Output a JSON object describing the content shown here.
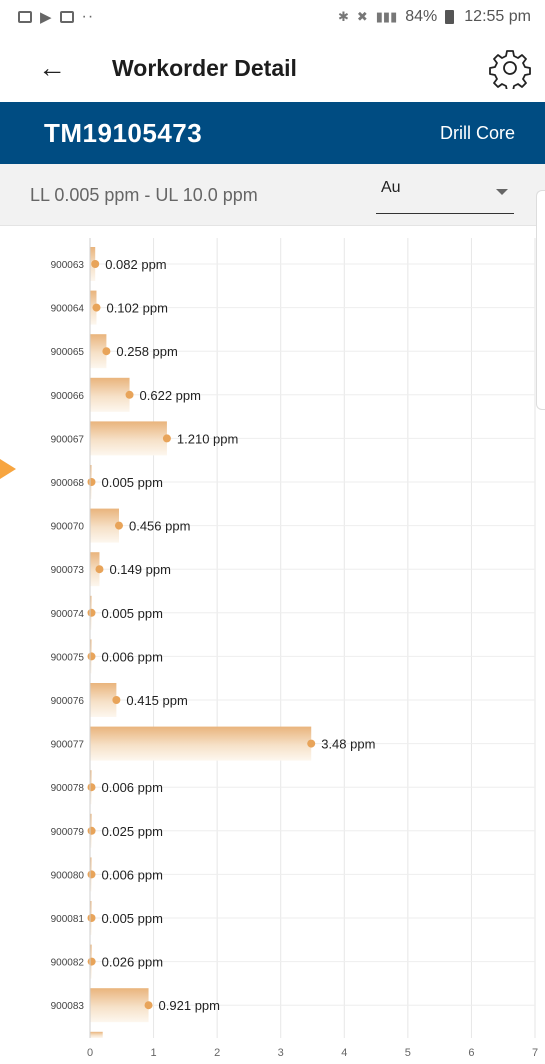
{
  "status_bar": {
    "time": "12:55 pm",
    "battery": "84%",
    "left_icons": [
      "gallery-icon",
      "play-store-icon",
      "gmail-icon"
    ],
    "more": "··"
  },
  "app_bar": {
    "title": "Workorder Detail",
    "back_icon": "arrow-left-icon",
    "settings_icon": "gear-icon"
  },
  "workorder": {
    "id": "TM19105473",
    "type": "Drill Core"
  },
  "limits": {
    "text": "LL 0.005 ppm - UL 10.0 ppm",
    "element_selected": "Au"
  },
  "colors": {
    "header_blue": "#004c82",
    "bar_orange": "#e8a45a",
    "bar_light": "#fbf2e6",
    "arrow_orange": "#f7a540"
  },
  "chart_data": {
    "type": "bar",
    "orientation": "horizontal",
    "unit": "ppm",
    "categories": [
      "900063",
      "900064",
      "900065",
      "900066",
      "900067",
      "900068",
      "900070",
      "900073",
      "900074",
      "900075",
      "900076",
      "900077",
      "900078",
      "900079",
      "900080",
      "900081",
      "900082",
      "900083"
    ],
    "values": [
      0.082,
      0.102,
      0.258,
      0.622,
      1.21,
      0.005,
      0.456,
      0.149,
      0.005,
      0.006,
      0.415,
      3.48,
      0.006,
      0.025,
      0.006,
      0.005,
      0.026,
      0.921
    ],
    "labels": [
      "0.082 ppm",
      "0.102 ppm",
      "0.258 ppm",
      "0.622 ppm",
      "1.210 ppm",
      "0.005 ppm",
      "0.456 ppm",
      "0.149 ppm",
      "0.005 ppm",
      "0.006 ppm",
      "0.415 ppm",
      "3.48 ppm",
      "0.006 ppm",
      "0.025 ppm",
      "0.006 ppm",
      "0.005 ppm",
      "0.026 ppm",
      "0.921 ppm"
    ],
    "partial_next_value": 0.2,
    "xlim": [
      0,
      7
    ],
    "xticks": [
      "0",
      "1",
      "2",
      "3",
      "4",
      "5",
      "6",
      "7"
    ],
    "grid": true
  }
}
